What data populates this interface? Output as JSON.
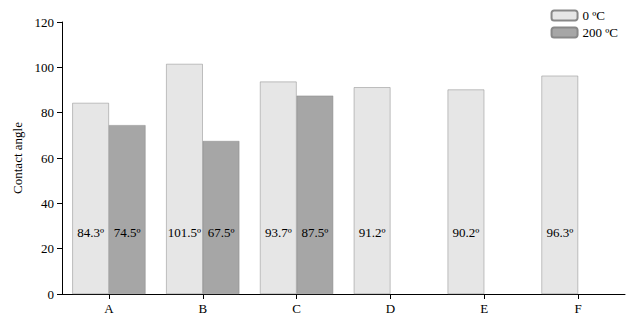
{
  "chart_data": {
    "type": "bar",
    "y_label": "Contact angle",
    "categories": [
      "A",
      "B",
      "C",
      "D",
      "E",
      "F"
    ],
    "series": [
      {
        "name": "0 ºC",
        "color": "#e6e6e6",
        "values": [
          84.3,
          101.5,
          93.7,
          91.2,
          90.2,
          96.3
        ],
        "value_labels": [
          "84.3º",
          "101.5º",
          "93.7º",
          "91.2º",
          "90.2º",
          "96.3º"
        ]
      },
      {
        "name": "200 ºC",
        "color": "#a6a6a6",
        "values": [
          74.5,
          67.5,
          87.5,
          null,
          null,
          null
        ],
        "value_labels": [
          "74.5º",
          "67.5º",
          "87.5º",
          null,
          null,
          null
        ]
      }
    ],
    "ylim": [
      0,
      120
    ],
    "yticks": [
      0,
      20,
      40,
      60,
      80,
      100,
      120
    ],
    "grid": false,
    "legend": "upper right",
    "data_labels": true
  }
}
